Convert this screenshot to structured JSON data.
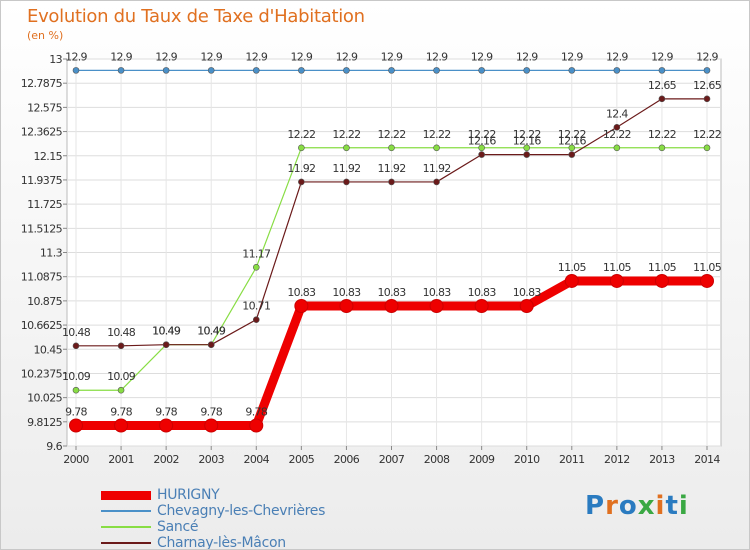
{
  "chart_data": {
    "type": "line",
    "title": "Evolution du Taux de Taxe d'Habitation",
    "unit_label": "(en %)",
    "x": [
      "2000",
      "2001",
      "2002",
      "2003",
      "2004",
      "2005",
      "2006",
      "2007",
      "2008",
      "2009",
      "2010",
      "2011",
      "2012",
      "2013",
      "2014"
    ],
    "ylim": [
      9.6,
      13
    ],
    "yticks": [
      "9.6",
      "9.8125",
      "10.025",
      "10.2375",
      "10.45",
      "10.6625",
      "10.875",
      "11.0875",
      "11.3",
      "11.5125",
      "11.725",
      "11.9375",
      "12.15",
      "12.3625",
      "12.575",
      "12.7875",
      "13"
    ],
    "grid": true,
    "series": [
      {
        "name": "HURIGNY",
        "color": "#ee0000",
        "width": 9,
        "values": [
          9.78,
          9.78,
          9.78,
          9.78,
          9.78,
          10.83,
          10.83,
          10.83,
          10.83,
          10.83,
          10.83,
          11.05,
          11.05,
          11.05,
          11.05
        ],
        "labels": [
          "9.78",
          "9.78",
          "9.78",
          "9.78",
          "9.78",
          "10.83",
          "10.83",
          "10.83",
          "10.83",
          "10.83",
          "10.83",
          "11.05",
          "11.05",
          "11.05",
          "11.05"
        ]
      },
      {
        "name": "Chevagny-les-Chevrières",
        "color": "#4a90c8",
        "width": 1.2,
        "values": [
          12.9,
          12.9,
          12.9,
          12.9,
          12.9,
          12.9,
          12.9,
          12.9,
          12.9,
          12.9,
          12.9,
          12.9,
          12.9,
          12.9,
          12.9
        ],
        "labels": [
          "12.9",
          "12.9",
          "12.9",
          "12.9",
          "12.9",
          "12.9",
          "12.9",
          "12.9",
          "12.9",
          "12.9",
          "12.9",
          "12.9",
          "12.9",
          "12.9",
          "12.9"
        ]
      },
      {
        "name": "Sancé",
        "color": "#88dd44",
        "width": 1.2,
        "values": [
          10.09,
          10.09,
          10.49,
          10.49,
          11.17,
          12.22,
          12.22,
          12.22,
          12.22,
          12.22,
          12.22,
          12.22,
          12.22,
          12.22,
          12.22
        ],
        "labels": [
          "10.09",
          "10.09",
          "10.49",
          "10.49",
          "11.17",
          "12.22",
          "12.22",
          "12.22",
          "12.22",
          "12.22",
          "12.22",
          "12.22",
          "12.22",
          "12.22",
          "12.22"
        ]
      },
      {
        "name": "Charnay-lès-Mâcon",
        "color": "#6b1a1a",
        "width": 1.2,
        "values": [
          10.48,
          10.48,
          10.49,
          10.49,
          10.71,
          11.92,
          11.92,
          11.92,
          11.92,
          12.16,
          12.16,
          12.16,
          12.4,
          12.65,
          12.65
        ],
        "labels": [
          "10.48",
          "10.48",
          "10.49",
          "10.49",
          "10.71",
          "11.92",
          "11.92",
          "11.92",
          "11.92",
          "12.16",
          "12.16",
          "12.16",
          "12.4",
          "12.65",
          "12.65"
        ]
      }
    ]
  },
  "logo": {
    "letters": [
      "P",
      "r",
      "o",
      "x",
      "i",
      "t",
      "i"
    ],
    "colors": [
      "#2a7bc0",
      "#e07020",
      "#2a7bc0",
      "#3aa843",
      "#e07020",
      "#2a7bc0",
      "#3aa843"
    ]
  }
}
